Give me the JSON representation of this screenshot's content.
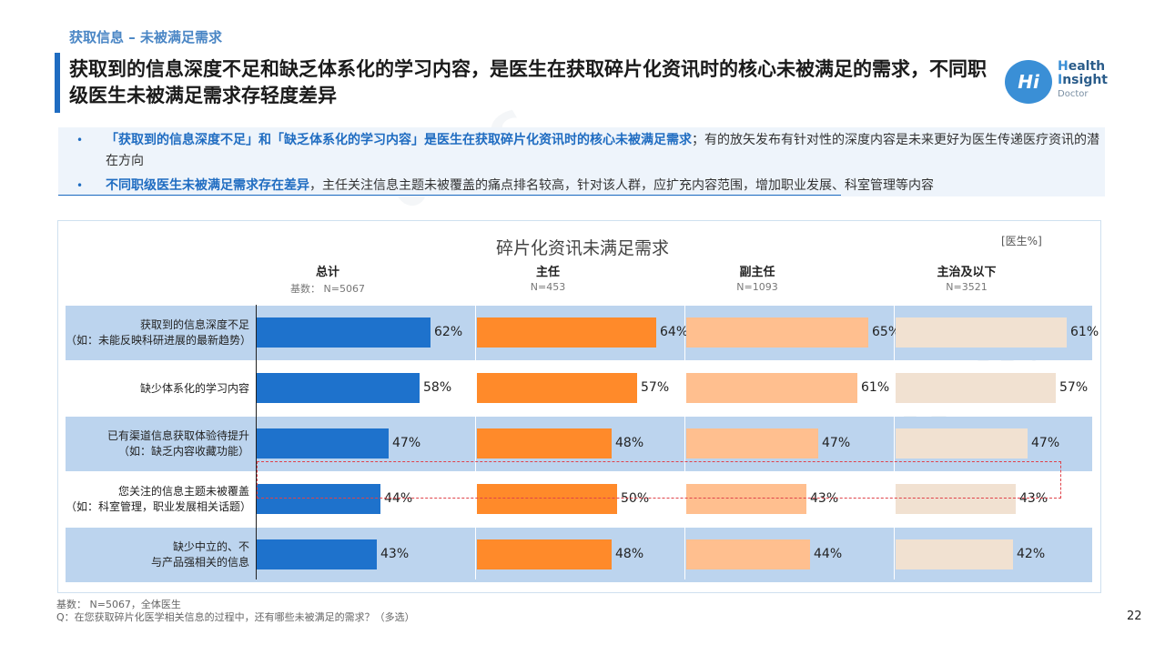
{
  "header": {
    "section_tag": "获取信息 – 未被满足需求",
    "title": "获取到的信息深度不足和缺乏体系化的学习内容，是医生在获取碎片化资讯时的核心未被满足的需求，不同职级医生未被满足需求存轻度差异"
  },
  "logo": {
    "initials": "Hi",
    "line1_first": "H",
    "line1_rest": "ealth",
    "line2_first": "I",
    "line2_rest": "nsight",
    "line3": "Doctor"
  },
  "bullets": [
    {
      "dot": "•",
      "highlight": "「获取到的信息深度不足」和「缺乏体系化的学习内容」是医生在获取碎片化资讯时的核心未被满足需求",
      "rest": "；有的放矢发布有针对性的深度内容是未来更好为医生传递医疗资讯的潜在方向"
    },
    {
      "dot": "•",
      "highlight": "不同职级医生未被满足需求存在差异",
      "rest": "，主任关注信息主题未被覆盖的痛点排名较高，针对该人群，应扩充内容范围，增加职业发展、科室管理等内容"
    }
  ],
  "chart_data": {
    "type": "bar",
    "title": "碎片化资讯未满足需求",
    "unit": "[医生%]",
    "base_prefix": "基数：",
    "categories": [
      "获取到的信息深度不足\n（如：未能反映科研进展的最新趋势）",
      "缺少体系化的学习内容",
      "已有渠道信息获取体验待提升\n（如：缺乏内容收藏功能）",
      "您关注的信息主题未被覆盖\n（如：科室管理，职业发展相关话题）",
      "缺少中立的、不\n与产品强相关的信息"
    ],
    "series": [
      {
        "name": "总计",
        "base": "N=5067",
        "color": "#1e72cc",
        "values": [
          62,
          58,
          47,
          44,
          43
        ]
      },
      {
        "name": "主任",
        "base": "N=453",
        "color": "#ff8a2a",
        "values": [
          64,
          57,
          48,
          50,
          48
        ]
      },
      {
        "name": "副主任",
        "base": "N=1093",
        "color": "#ffbf8f",
        "values": [
          65,
          61,
          47,
          43,
          44
        ]
      },
      {
        "name": "主治及以下",
        "base": "N=3521",
        "color": "#f1e1d1",
        "values": [
          61,
          57,
          47,
          43,
          42
        ]
      }
    ],
    "highlighted_row": 3,
    "band_colors": [
      "#bcd4ee",
      "#ffffff"
    ]
  },
  "footer": {
    "base": "基数： N=5067，全体医生",
    "question": "Q：在您获取碎片化医学相关信息的过程中，还有哪些未被满足的需求？（多选）"
  },
  "page_number": "22"
}
